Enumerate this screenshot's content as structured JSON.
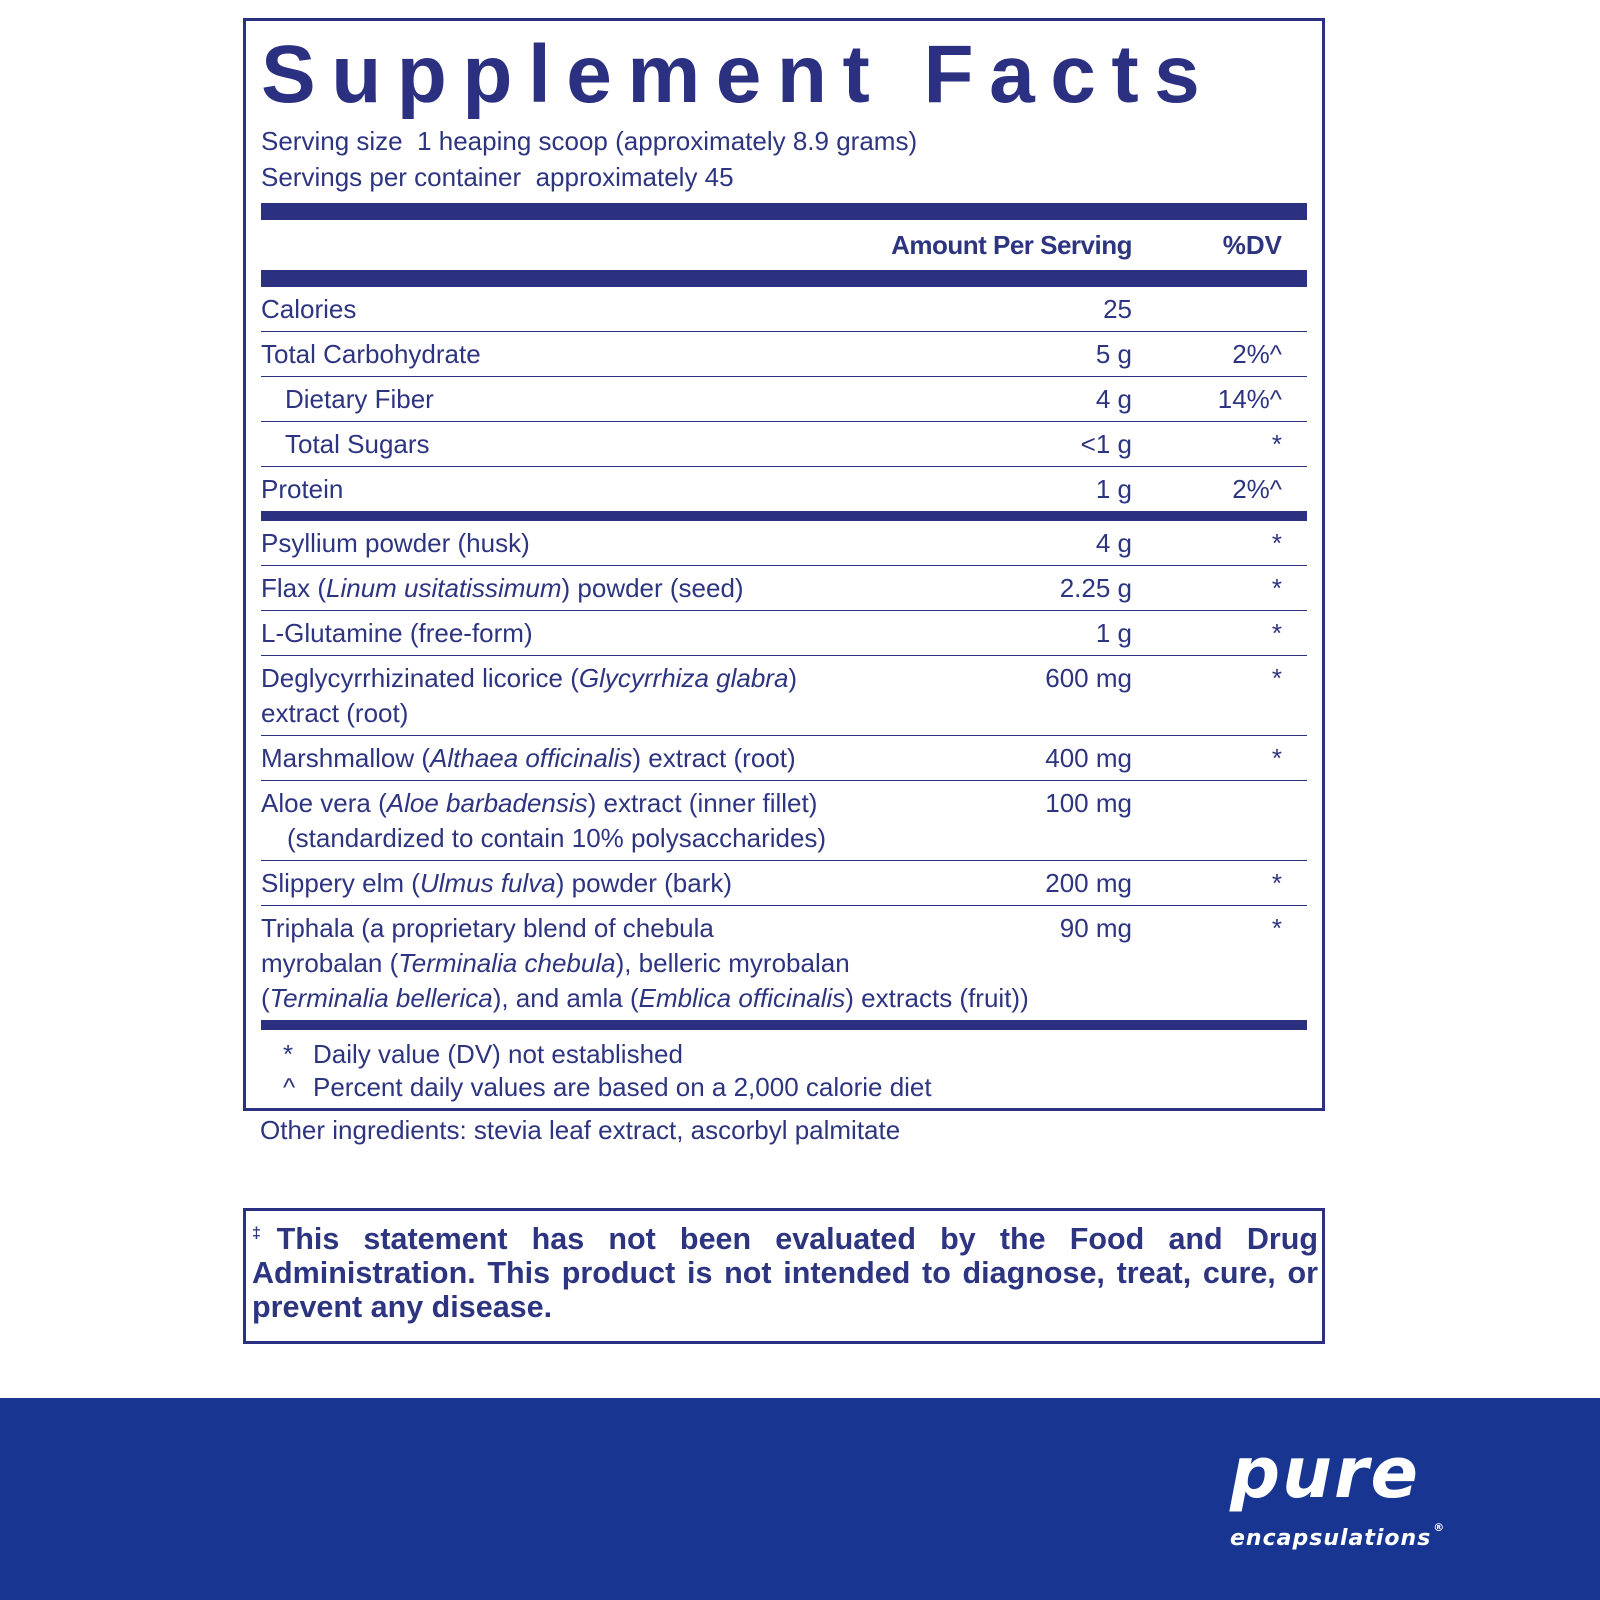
{
  "title": "Supplement Facts",
  "serving_size": "Serving size  1 heaping scoop (approximately 8.9 grams)",
  "servings_per_container": "Servings per container  approximately 45",
  "columns": {
    "amount": "Amount Per Serving",
    "dv": "%DV"
  },
  "nutrition_rows": [
    {
      "lines": [
        [
          {
            "t": "Calories"
          }
        ]
      ],
      "amount": "25",
      "dv": ""
    },
    {
      "lines": [
        [
          {
            "t": "Total Carbohydrate"
          }
        ]
      ],
      "amount": "5 g",
      "dv": "2%^"
    },
    {
      "lines": [
        [
          {
            "t": "Dietary Fiber"
          }
        ]
      ],
      "amount": "4 g",
      "dv": "14%^",
      "indent": true
    },
    {
      "lines": [
        [
          {
            "t": "Total Sugars"
          }
        ]
      ],
      "amount": "<1 g",
      "dv": "*",
      "indent": true
    },
    {
      "lines": [
        [
          {
            "t": "Protein"
          }
        ]
      ],
      "amount": "1 g",
      "dv": "2%^"
    }
  ],
  "ingredient_rows": [
    {
      "lines": [
        [
          {
            "t": "Psyllium powder (husk)"
          }
        ]
      ],
      "amount": "4 g",
      "dv": "*"
    },
    {
      "lines": [
        [
          {
            "t": "Flax ("
          },
          {
            "t": "Linum usitatissimum",
            "i": true
          },
          {
            "t": ") powder (seed)"
          }
        ]
      ],
      "amount": "2.25 g",
      "dv": "*"
    },
    {
      "lines": [
        [
          {
            "t": "L-Glutamine (free-form)"
          }
        ]
      ],
      "amount": "1 g",
      "dv": "*"
    },
    {
      "lines": [
        [
          {
            "t": "Deglycyrrhizinated licorice ("
          },
          {
            "t": "Glycyrrhiza glabra",
            "i": true
          },
          {
            "t": ")"
          }
        ],
        [
          {
            "t": "extract (root)"
          }
        ]
      ],
      "amount": "600 mg",
      "dv": "*"
    },
    {
      "lines": [
        [
          {
            "t": "Marshmallow ("
          },
          {
            "t": "Althaea officinalis",
            "i": true
          },
          {
            "t": ") extract (root)"
          }
        ]
      ],
      "amount": "400 mg",
      "dv": "*"
    },
    {
      "lines": [
        [
          {
            "t": "Aloe vera ("
          },
          {
            "t": "Aloe barbadensis",
            "i": true
          },
          {
            "t": ") extract (inner fillet)"
          }
        ],
        [
          {
            "t": "(standardized to contain 10% polysaccharides)",
            "indent": true
          }
        ]
      ],
      "amount": "100 mg",
      "dv": ""
    },
    {
      "lines": [
        [
          {
            "t": "Slippery elm ("
          },
          {
            "t": "Ulmus fulva",
            "i": true
          },
          {
            "t": ") powder (bark)"
          }
        ]
      ],
      "amount": "200 mg",
      "dv": "*"
    },
    {
      "lines": [
        [
          {
            "t": "Triphala (a proprietary blend of chebula"
          }
        ],
        [
          {
            "t": "myrobalan ("
          },
          {
            "t": "Terminalia chebula",
            "i": true
          },
          {
            "t": "), belleric myrobalan"
          }
        ],
        [
          {
            "t": "("
          },
          {
            "t": "Terminalia bellerica",
            "i": true
          },
          {
            "t": "), and amla ("
          },
          {
            "t": "Emblica officinalis",
            "i": true
          },
          {
            "t": ") extracts (fruit))"
          }
        ]
      ],
      "amount": "90 mg",
      "dv": "*"
    }
  ],
  "footnotes": [
    {
      "symbol": "*",
      "text": "Daily value (DV) not established"
    },
    {
      "symbol": "^",
      "text": "Percent daily values are based on a 2,000 calorie diet"
    }
  ],
  "other_ingredients": "Other ingredients: stevia leaf extract, ascorbyl palmitate",
  "disclaimer": {
    "symbol": "‡",
    "text": "This statement has not been evaluated by the Food and Drug Administration. This product is not intended to diagnose, treat, cure, or prevent any disease."
  },
  "brand": {
    "logo_main": "pure",
    "logo_sub": "encapsulations",
    "registered": "®"
  },
  "colors": {
    "text": "#2e3580",
    "rule": "#2b3080",
    "footer": "#173591"
  }
}
